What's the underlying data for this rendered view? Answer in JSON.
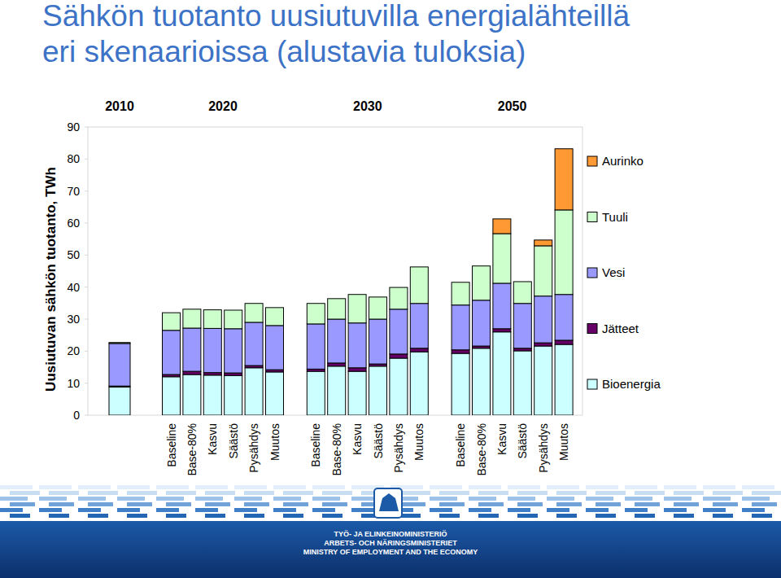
{
  "chart_data": {
    "type": "bar",
    "stacked": true,
    "title": "Sähkön tuotanto uusiutuvilla energialähteillä\neri skenaarioissa (alustavia tuloksia)",
    "y_label": "Uusiutuvan sähkön tuotanto, TWh",
    "categories": [
      null,
      "Baseline",
      "Base-80%",
      "Kasvu",
      "Säästö",
      "Pysähdys",
      "Muutos",
      "Baseline",
      "Base-80%",
      "Kasvu",
      "Säästö",
      "Pysähdys",
      "Muutos",
      "Baseline",
      "Base-80%",
      "Kasvu",
      "Säästö",
      "Pysähdys",
      "Muutos"
    ],
    "groups": [
      {
        "label": "2010",
        "count": 1
      },
      {
        "label": "2020",
        "count": 6
      },
      {
        "label": "2030",
        "count": 6
      },
      {
        "label": "2050",
        "count": 6
      }
    ],
    "series": [
      {
        "name": "Bioenergia",
        "color": "#ccffff",
        "values": [
          8.8,
          12.0,
          12.7,
          12.5,
          12.4,
          14.8,
          13.5,
          13.7,
          15.3,
          13.7,
          15.3,
          17.8,
          19.8,
          19.3,
          20.9,
          26.0,
          20.1,
          21.6,
          22.1
        ]
      },
      {
        "name": "Jätteet",
        "color": "#660066",
        "values": [
          0.3,
          0.7,
          1.0,
          0.8,
          0.8,
          0.7,
          0.7,
          0.7,
          1.0,
          1.1,
          0.7,
          1.3,
          1.1,
          1.1,
          0.7,
          1.0,
          0.8,
          1.0,
          1.3
        ]
      },
      {
        "name": "Vesi",
        "color": "#9999ff",
        "values": [
          13.3,
          13.8,
          13.5,
          13.8,
          13.8,
          13.5,
          13.8,
          14.1,
          13.7,
          14.0,
          14.0,
          14.0,
          14.0,
          14.0,
          14.3,
          14.2,
          14.0,
          14.6,
          14.3
        ]
      },
      {
        "name": "Tuuli",
        "color": "#ccffcc",
        "values": [
          0.3,
          5.5,
          5.9,
          5.8,
          5.8,
          5.9,
          5.6,
          6.4,
          6.4,
          8.9,
          6.9,
          6.8,
          11.4,
          7.1,
          10.7,
          15.5,
          6.8,
          15.7,
          26.4
        ]
      },
      {
        "name": "Aurinko",
        "color": "#ff9933",
        "values": [
          0,
          0,
          0,
          0,
          0,
          0,
          0,
          0,
          0,
          0,
          0,
          0,
          0,
          0,
          0,
          4.6,
          0,
          1.8,
          19.1
        ]
      }
    ],
    "ylim": [
      0,
      90
    ],
    "yticks": [
      0,
      10,
      20,
      30,
      40,
      50,
      60,
      70,
      80,
      90
    ],
    "grid": false,
    "legend": "right",
    "annotations": [
      "TYÖ- JA ELINKEINOMINISTERIÖ",
      "ARBETS- OCH NÄRINGSMINISTERIET",
      "MINISTRY OF EMPLOYMENT AND THE ECONOMY"
    ]
  }
}
